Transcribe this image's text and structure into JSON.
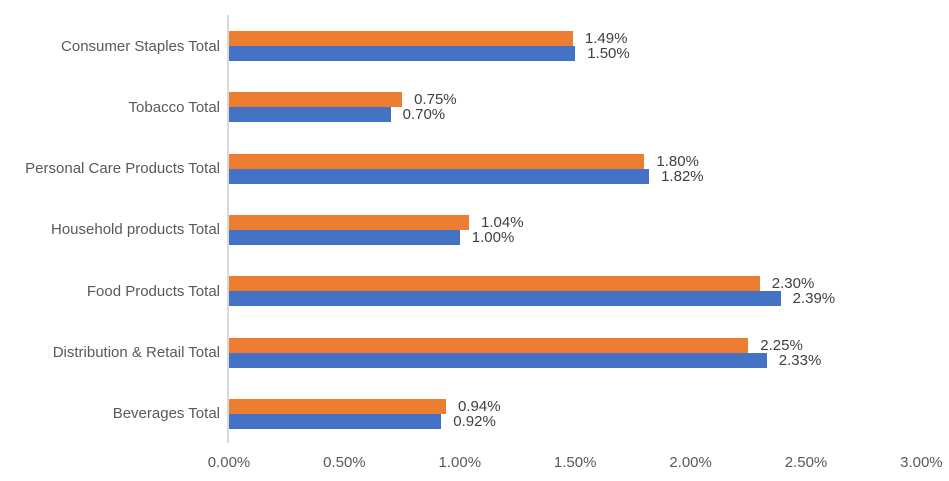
{
  "chart_data": {
    "type": "bar",
    "orientation": "horizontal",
    "title": "",
    "xlabel": "",
    "ylabel": "",
    "categories": [
      "Consumer Staples Total",
      "Tobacco Total",
      "Personal Care Products Total",
      "Household products Total",
      "Food Products Total",
      "Distribution & Retail Total",
      "Beverages Total"
    ],
    "series": [
      {
        "name": "orange-series",
        "color": "#ED7D31",
        "values": [
          1.49,
          0.75,
          1.8,
          1.04,
          2.3,
          2.25,
          0.94
        ],
        "labels": [
          "1.49%",
          "0.75%",
          "1.80%",
          "1.04%",
          "2.30%",
          "2.25%",
          "0.94%"
        ]
      },
      {
        "name": "blue-series",
        "color": "#4472C4",
        "values": [
          1.5,
          0.7,
          1.82,
          1.0,
          2.39,
          2.33,
          0.92
        ],
        "labels": [
          "1.50%",
          "0.70%",
          "1.82%",
          "1.00%",
          "2.39%",
          "2.33%",
          "0.92%"
        ]
      }
    ],
    "xlim": [
      0,
      3
    ],
    "x_ticks": [
      "0.00%",
      "0.50%",
      "1.00%",
      "1.50%",
      "2.00%",
      "2.50%",
      "3.00%"
    ],
    "grid": "off",
    "legend": "none",
    "colors": {
      "axis_line": "#D9D9D9",
      "category_label": "#595959",
      "data_label": "#404040",
      "tick_label": "#595959",
      "background": "#FFFFFF"
    }
  }
}
